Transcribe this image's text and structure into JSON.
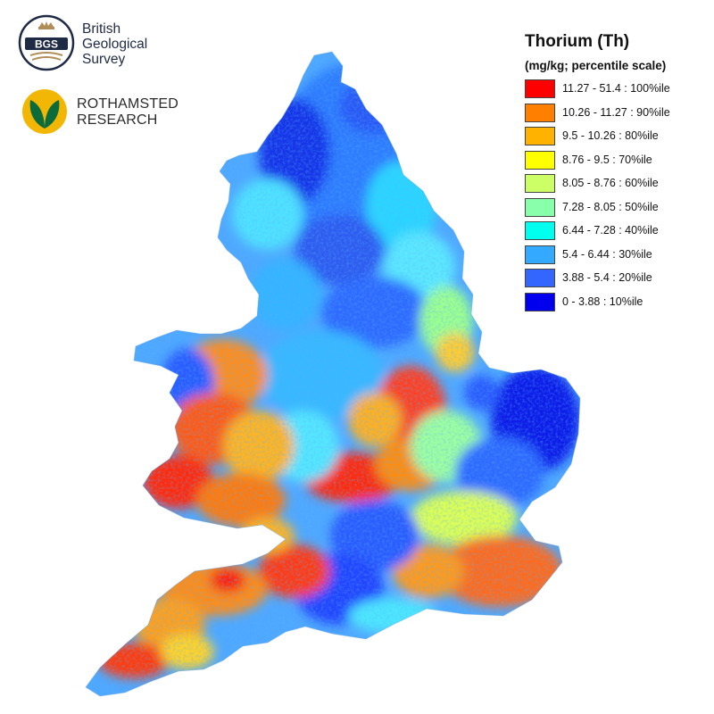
{
  "logos": {
    "bgs": {
      "badge_text": "BGS",
      "lines": [
        "British",
        "Geological",
        "Survey"
      ]
    },
    "rothamsted": {
      "lines": [
        "ROTHAMSTED",
        "RESEARCH"
      ]
    }
  },
  "legend": {
    "title": "Thorium (Th)",
    "subtitle": "(mg/kg; percentile scale)",
    "items": [
      {
        "label": "11.27 - 51.4 : 100%ile",
        "color": "#ff0000"
      },
      {
        "label": "10.26 - 11.27 : 90%ile",
        "color": "#ff7f00"
      },
      {
        "label": "9.5 - 10.26 : 80%ile",
        "color": "#ffb300"
      },
      {
        "label": "8.76 - 9.5 : 70%ile",
        "color": "#ffff00"
      },
      {
        "label": "8.05 - 8.76 : 60%ile",
        "color": "#ccff66"
      },
      {
        "label": "7.28 - 8.05 : 50%ile",
        "color": "#88ffaa"
      },
      {
        "label": "6.44 - 7.28 : 40%ile",
        "color": "#00ffee"
      },
      {
        "label": "5.4 - 6.44 : 30%ile",
        "color": "#33aaff"
      },
      {
        "label": "3.88 - 5.4 : 20%ile",
        "color": "#3366ff"
      },
      {
        "label": "0 - 3.88 : 10%ile",
        "color": "#0000ee"
      }
    ]
  }
}
